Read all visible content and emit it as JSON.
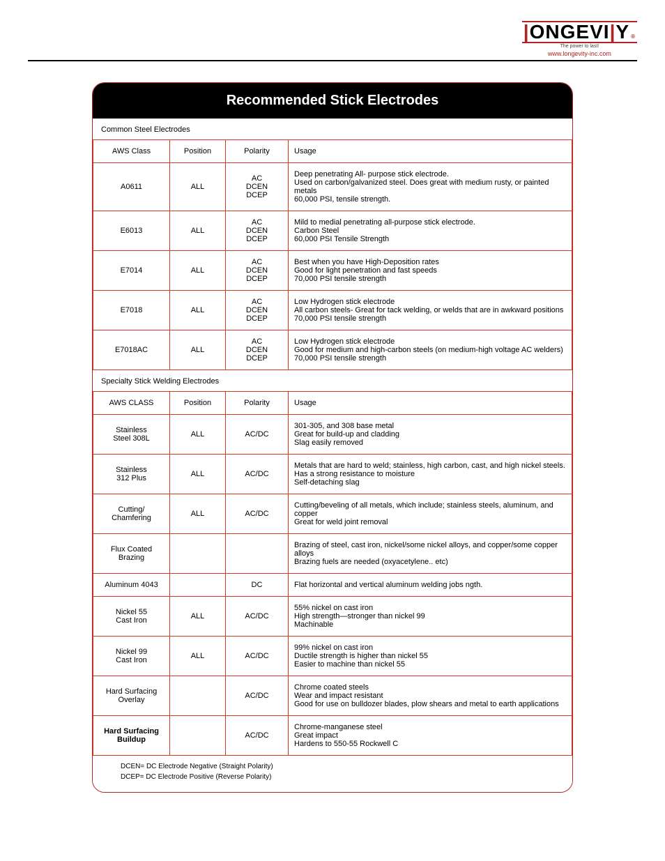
{
  "brand": {
    "name_left": "ONGEVI",
    "name_right": "Y",
    "tagline": "The power to last!",
    "url": "www.longevity-inc.com"
  },
  "card": {
    "title": "Recommended Stick Electrodes",
    "border_color": "#d13a1a",
    "section1_label": "Common Steel Electrodes",
    "section2_label": "Specialty Stick Welding Electrodes",
    "columns1": [
      "AWS Class",
      "Position",
      "Polarity",
      "Usage"
    ],
    "columns2": [
      "AWS CLASS",
      "Position",
      "Polarity",
      "Usage"
    ],
    "rows1": [
      {
        "aws": "A0611",
        "position": "ALL",
        "polarity": "AC\nDCEN\nDCEP",
        "usage": "Deep penetrating All- purpose stick electrode.\nUsed on carbon/galvanized steel.  Does great with medium rusty, or painted metals\n60,000 PSI, tensile strength."
      },
      {
        "aws": "E6013",
        "position": "ALL",
        "polarity": "AC\nDCEN\nDCEP",
        "usage": "Mild to medial penetrating all-purpose stick electrode.\nCarbon Steel\n60,000 PSI Tensile Strength"
      },
      {
        "aws": "E7014",
        "position": "ALL",
        "polarity": "AC\nDCEN\nDCEP",
        "usage": "Best when you have High-Deposition rates\nGood for light penetration and fast speeds\n70,000  PSI tensile strength"
      },
      {
        "aws": "E7018",
        "position": "ALL",
        "polarity": "AC\nDCEN\nDCEP",
        "usage": "Low Hydrogen stick electrode\nAll carbon steels- Great for tack welding, or welds that are in awkward positions\n70,000 PSI tensile strength"
      },
      {
        "aws": "E7018AC",
        "position": "ALL",
        "polarity": "AC\nDCEN\nDCEP",
        "usage": "Low Hydrogen stick electrode\nGood for medium and high-carbon steels (on medium-high voltage AC welders)\n70,000 PSI tensile strength"
      }
    ],
    "rows2": [
      {
        "aws": "Stainless\nSteel 308L",
        "position": "ALL",
        "polarity": "AC/DC",
        "usage": "301-305, and 308 base metal\nGreat for build-up and cladding\nSlag easily removed"
      },
      {
        "aws": "Stainless\n312 Plus",
        "position": "ALL",
        "polarity": "AC/DC",
        "usage": "Metals that are hard to weld; stainless, high carbon, cast, and high nickel steels.\nHas a strong resistance to moisture\nSelf-detaching slag"
      },
      {
        "aws": "Cutting/\nChamfering",
        "position": "ALL",
        "polarity": "AC/DC",
        "usage": "Cutting/beveling of all metals, which include; stainless steels, aluminum, and copper\nGreat for weld joint removal"
      },
      {
        "aws": "Flux Coated\nBrazing",
        "position": "",
        "polarity": "",
        "usage": "Brazing of steel, cast iron, nickel/some nickel alloys, and copper/some copper alloys\nBrazing fuels are needed (oxyacetylene.. etc)"
      },
      {
        "aws": "Aluminum 4043",
        "position": "",
        "polarity": "DC",
        "usage": "Flat horizontal and vertical aluminum welding jobs ngth."
      },
      {
        "aws": "Nickel 55\nCast Iron",
        "position": "ALL",
        "polarity": "AC/DC",
        "usage": "55% nickel on cast iron\nHigh strength—stronger than nickel 99\nMachinable"
      },
      {
        "aws": "Nickel 99\nCast Iron",
        "position": "ALL",
        "polarity": "AC/DC",
        "usage": "99% nickel on cast iron\nDuctile strength is higher than nickel 55\nEasier to machine than nickel 55"
      },
      {
        "aws": "Hard Surfacing\nOverlay",
        "position": "",
        "polarity": "AC/DC",
        "usage": "Chrome coated steels\nWear and impact resistant\nGood for use on bulldozer blades, plow shears and metal to earth applications"
      },
      {
        "aws": "Hard Surfacing\nBuildup",
        "aws_bold": true,
        "position": "",
        "polarity": "AC/DC",
        "usage": "Chrome-manganese steel\nGreat impact\nHardens to 550-55 Rockwell C"
      }
    ],
    "footnotes": [
      "DCEN= DC Electrode Negative (Straight Polarity)",
      "DCEP= DC Electrode Positive (Reverse Polarity)"
    ]
  }
}
